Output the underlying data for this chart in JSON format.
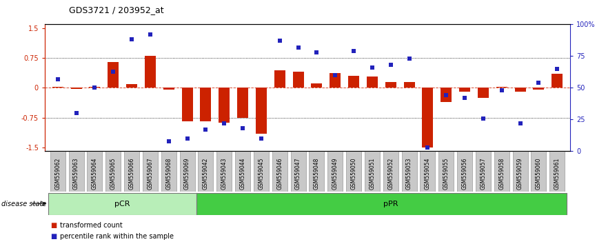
{
  "title": "GDS3721 / 203952_at",
  "samples": [
    "GSM559062",
    "GSM559063",
    "GSM559064",
    "GSM559065",
    "GSM559066",
    "GSM559067",
    "GSM559068",
    "GSM559069",
    "GSM559042",
    "GSM559043",
    "GSM559044",
    "GSM559045",
    "GSM559046",
    "GSM559047",
    "GSM559048",
    "GSM559049",
    "GSM559050",
    "GSM559051",
    "GSM559052",
    "GSM559053",
    "GSM559054",
    "GSM559055",
    "GSM559056",
    "GSM559057",
    "GSM559058",
    "GSM559059",
    "GSM559060",
    "GSM559061"
  ],
  "transformed_count": [
    0.03,
    -0.02,
    0.02,
    0.65,
    0.1,
    0.8,
    -0.05,
    -0.85,
    -0.85,
    -0.88,
    -0.75,
    -1.15,
    0.45,
    0.4,
    0.12,
    0.38,
    0.3,
    0.28,
    0.15,
    0.15,
    -1.5,
    -0.35,
    -0.1,
    -0.25,
    0.02,
    -0.1,
    -0.05,
    0.35
  ],
  "percentile_rank": [
    57,
    30,
    50,
    63,
    88,
    92,
    8,
    10,
    17,
    22,
    18,
    10,
    87,
    82,
    78,
    60,
    79,
    66,
    68,
    73,
    3,
    44,
    42,
    26,
    48,
    22,
    54,
    65
  ],
  "pCR_count": 8,
  "pPR_count": 20,
  "bar_color": "#cc2200",
  "dot_color": "#2222bb",
  "ylim_left": [
    -1.6,
    1.6
  ],
  "ylim_right": [
    0,
    100
  ],
  "yticks_left": [
    -1.5,
    -0.75,
    0.0,
    0.75,
    1.5
  ],
  "yticks_left_labels": [
    "-1.5",
    "-0.75",
    "0",
    "0.75",
    "1.5"
  ],
  "yticks_right": [
    0,
    25,
    50,
    75,
    100
  ],
  "yticks_right_labels": [
    "0",
    "25",
    "50",
    "75",
    "100%"
  ],
  "hline_color_red": "#cc2200",
  "bg_color": "#ffffff",
  "label_box_color": "#c8c8c8",
  "pCR_fill": "#b8eeb8",
  "pPR_fill": "#44cc44",
  "disease_state_label": "disease state",
  "legend_red_label": "transformed count",
  "legend_blue_label": "percentile rank within the sample"
}
